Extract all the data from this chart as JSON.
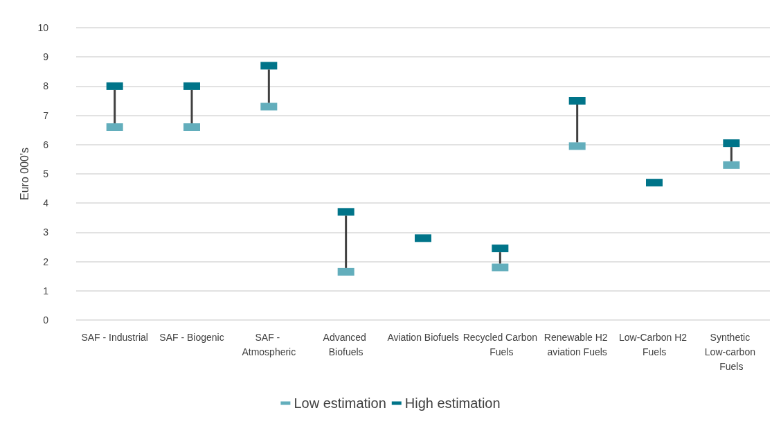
{
  "chart_data": {
    "type": "scatter",
    "ylabel": "Euro 000's",
    "categories": [
      "SAF - Industrial",
      "SAF - Biogenic",
      "SAF - Atmospheric",
      "Advanced Biofuels",
      "Aviation Biofuels",
      "Recycled Carbon Fuels",
      "Renewable H2 aviation Fuels",
      "Low-Carbon H2 Fuels",
      "Synthetic Low-carbon Fuels"
    ],
    "series": [
      {
        "name": "Low estimation",
        "color": "#63aebc",
        "values": [
          6.6,
          6.6,
          7.3,
          1.65,
          null,
          1.8,
          5.95,
          null,
          5.3
        ]
      },
      {
        "name": "High estimation",
        "color": "#007489",
        "values": [
          8.0,
          8.0,
          8.7,
          3.7,
          2.8,
          2.45,
          7.5,
          4.7,
          6.05
        ]
      }
    ],
    "ylim": [
      0,
      10
    ],
    "yticks": [
      0,
      1,
      2,
      3,
      4,
      5,
      6,
      7,
      8,
      9,
      10
    ],
    "grid": "y",
    "legend": "bottom",
    "marker": "square"
  }
}
